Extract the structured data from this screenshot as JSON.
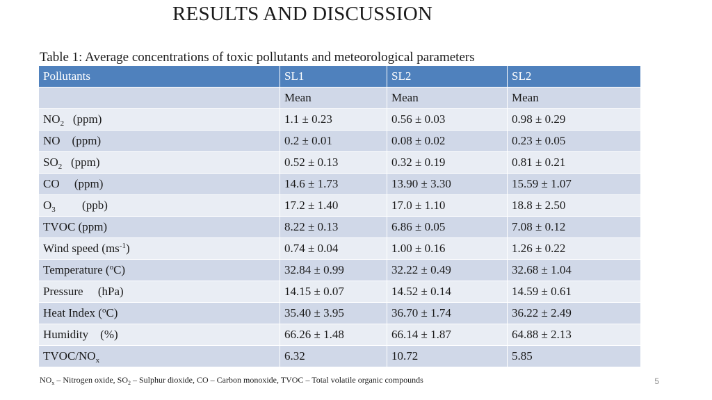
{
  "title": "RESULTS AND DISCUSSION",
  "caption": "Table 1: Average concentrations of toxic pollutants and meteorological parameters",
  "table": {
    "header": [
      "Pollutants",
      "SL1",
      "SL2",
      "SL2"
    ],
    "subheader": [
      "",
      "Mean",
      "Mean",
      "Mean"
    ],
    "rows": [
      {
        "name": {
          "pre": "NO",
          "sub": "2",
          "post": "   (ppm)"
        },
        "values": [
          "1.1 ± 0.23",
          "0.56 ± 0.03",
          "0.98 ± 0.29"
        ]
      },
      {
        "name": {
          "pre": "NO    (ppm)"
        },
        "values": [
          "0.2 ± 0.01",
          "0.08 ± 0.02",
          "0.23 ± 0.05"
        ]
      },
      {
        "name": {
          "pre": "SO",
          "sub": "2",
          "post": "   (ppm)"
        },
        "values": [
          "0.52 ± 0.13",
          "0.32 ± 0.19",
          "0.81 ± 0.21"
        ]
      },
      {
        "name": {
          "pre": "CO     (ppm)"
        },
        "values": [
          "14.6 ± 1.73",
          "13.90 ± 3.30",
          "15.59 ± 1.07"
        ]
      },
      {
        "name": {
          "pre": "O",
          "sub": "3",
          "post": "         (ppb)"
        },
        "values": [
          "17.2 ± 1.40",
          "17.0 ± 1.10",
          "18.8 ± 2.50"
        ]
      },
      {
        "name": {
          "pre": "TVOC (ppm)"
        },
        "values": [
          "8.22 ± 0.13",
          "6.86 ± 0.05",
          "7.08 ± 0.12"
        ]
      },
      {
        "name": {
          "pre": "Wind speed (ms",
          "sup": "-1",
          "post": ")"
        },
        "values": [
          "0.74 ± 0.04",
          "1.00 ± 0.16",
          "1.26 ± 0.22"
        ]
      },
      {
        "name": {
          "pre": "Temperature (",
          "sup": "o",
          "post": "C)"
        },
        "values": [
          "32.84 ± 0.99",
          "32.22 ± 0.49",
          "32.68 ± 1.04"
        ]
      },
      {
        "name": {
          "pre": "Pressure     (hPa)"
        },
        "values": [
          "14.15 ± 0.07",
          "14.52 ± 0.14",
          "14.59 ± 0.61"
        ]
      },
      {
        "name": {
          "pre": "Heat Index (",
          "sup": "o",
          "post": "C)"
        },
        "values": [
          "35.40 ± 3.95",
          "36.70 ± 1.74",
          "36.22 ± 2.49"
        ]
      },
      {
        "name": {
          "pre": "Humidity    (%)"
        },
        "values": [
          "66.26 ± 1.48",
          "66.14 ± 1.87",
          "64.88 ± 2.13"
        ]
      },
      {
        "name": {
          "pre": "TVOC/NO",
          "sub": "x"
        },
        "values": [
          "6.32",
          "10.72",
          "5.85"
        ]
      }
    ]
  },
  "footnote": {
    "parts": [
      {
        "text": "NO"
      },
      {
        "sub": "x"
      },
      {
        "text": " – Nitrogen oxide, SO"
      },
      {
        "sub": "2"
      },
      {
        "text": " – Sulphur dioxide, CO – Carbon monoxide, TVOC – Total volatile organic compounds"
      }
    ]
  },
  "page_number": "5",
  "colors": {
    "header_bg": "#4f81bd",
    "row_dark": "#d0d8e8",
    "row_light": "#e9edf4"
  }
}
